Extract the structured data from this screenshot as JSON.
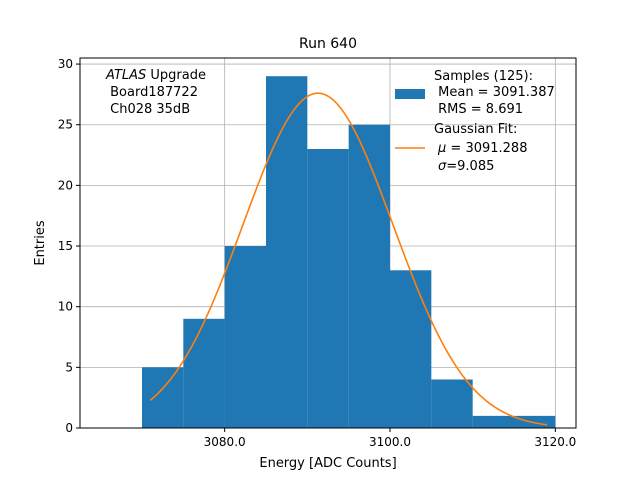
{
  "chart_data": {
    "type": "bar",
    "title": "Run 640",
    "xlabel": "Energy [ADC Counts]",
    "ylabel": "Entries",
    "xlim": [
      3062.5,
      3122.5
    ],
    "ylim": [
      0,
      30.5
    ],
    "xticks": [
      3080.0,
      3100.0,
      3120.0
    ],
    "xtick_labels": [
      "3080.0",
      "3100.0",
      "3120.0"
    ],
    "yticks": [
      0,
      5,
      10,
      15,
      20,
      25,
      30
    ],
    "ytick_labels": [
      "0",
      "5",
      "10",
      "15",
      "20",
      "25",
      "30"
    ],
    "grid": true,
    "bin_edges": [
      3070,
      3075,
      3080,
      3085,
      3090,
      3095,
      3100,
      3105,
      3110,
      3115,
      3120
    ],
    "counts": [
      5,
      9,
      15,
      29,
      23,
      25,
      13,
      4,
      1,
      1
    ],
    "bar_color": "#1f77b4",
    "fit": {
      "name": "Gaussian Fit",
      "mu": 3091.288,
      "sigma": 9.085,
      "amplitude": 27.6,
      "x_range": [
        3071,
        3119
      ],
      "color": "#ff7f0e"
    },
    "annotation": {
      "italic": "ATLAS",
      "line1_rest": " Upgrade",
      "line2": " Board187722",
      "line3": " Ch028 35dB"
    },
    "legend": {
      "placement": "top-right",
      "samples_line1": "Samples (125):",
      "samples_line2": " Mean = 3091.387",
      "samples_line3": " RMS = 8.691",
      "fit_line1": "Gaussian Fit:",
      "fit_line2_symbol": "μ",
      "fit_line2_rest": " = 3091.288",
      "fit_line3_symbol": "σ",
      "fit_line3_rest": "=9.085"
    }
  }
}
